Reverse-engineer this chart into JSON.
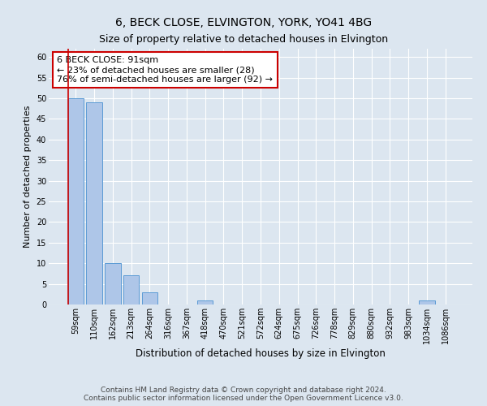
{
  "title": "6, BECK CLOSE, ELVINGTON, YORK, YO41 4BG",
  "subtitle": "Size of property relative to detached houses in Elvington",
  "xlabel": "Distribution of detached houses by size in Elvington",
  "ylabel": "Number of detached properties",
  "bar_labels": [
    "59sqm",
    "110sqm",
    "162sqm",
    "213sqm",
    "264sqm",
    "316sqm",
    "367sqm",
    "418sqm",
    "470sqm",
    "521sqm",
    "572sqm",
    "624sqm",
    "675sqm",
    "726sqm",
    "778sqm",
    "829sqm",
    "880sqm",
    "932sqm",
    "983sqm",
    "1034sqm",
    "1086sqm"
  ],
  "bar_values": [
    50,
    49,
    10,
    7,
    3,
    0,
    0,
    1,
    0,
    0,
    0,
    0,
    0,
    0,
    0,
    0,
    0,
    0,
    0,
    1,
    0
  ],
  "bar_color": "#aec6e8",
  "bar_edge_color": "#5b9bd5",
  "annotation_line_color": "#cc0000",
  "annotation_box_text": "6 BECK CLOSE: 91sqm\n← 23% of detached houses are smaller (28)\n76% of semi-detached houses are larger (92) →",
  "ylim": [
    0,
    62
  ],
  "yticks": [
    0,
    5,
    10,
    15,
    20,
    25,
    30,
    35,
    40,
    45,
    50,
    55,
    60
  ],
  "footer_line1": "Contains HM Land Registry data © Crown copyright and database right 2024.",
  "footer_line2": "Contains public sector information licensed under the Open Government Licence v3.0.",
  "bg_color": "#dce6f0",
  "plot_bg_color": "#dce6f0",
  "title_fontsize": 10,
  "subtitle_fontsize": 9,
  "xlabel_fontsize": 8.5,
  "ylabel_fontsize": 8,
  "tick_fontsize": 7,
  "annotation_fontsize": 8,
  "footer_fontsize": 6.5,
  "grid_color": "#ffffff"
}
